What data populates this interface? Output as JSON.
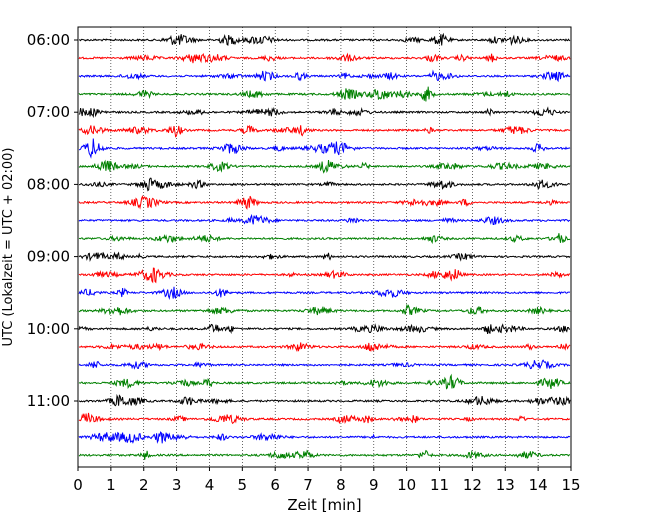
{
  "chart_data": {
    "type": "line",
    "title": "",
    "xlabel": "Zeit  [min]",
    "ylabel": "UTC (Lokalzeit = UTC + 02:00)",
    "xlim": [
      0,
      15
    ],
    "x_ticks": [
      0,
      1,
      2,
      3,
      4,
      5,
      6,
      7,
      8,
      9,
      10,
      11,
      12,
      13,
      14,
      15
    ],
    "y_tick_labels": [
      "06:00",
      "07:00",
      "08:00",
      "09:00",
      "10:00",
      "11:00"
    ],
    "trace_start": "06:00",
    "trace_interval_min": 15,
    "trace_count": 24,
    "trace_colors": [
      "#000000",
      "#ff0000",
      "#0000ff",
      "#008000"
    ],
    "grid": "vertical-dotted",
    "legend": "none"
  }
}
